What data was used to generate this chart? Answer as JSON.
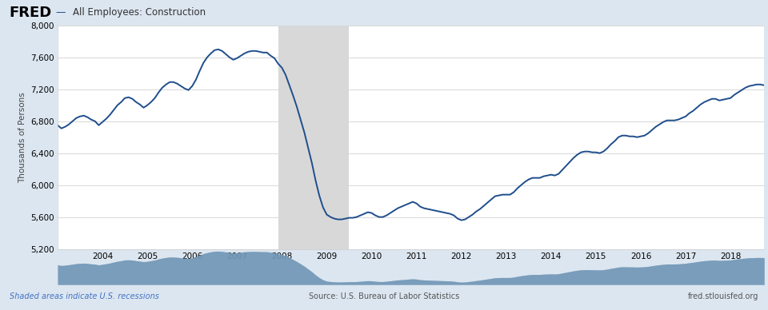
{
  "title": "All Employees: Construction",
  "ylabel": "Thousands of Persons",
  "recession_start": 2007.917,
  "recession_end": 2009.5,
  "line_color": "#1f4e8c",
  "recession_color": "#d8d8d8",
  "bg_color": "#ffffff",
  "header_bg": "#dce6f0",
  "footer_text_left": "Shaded areas indicate U.S. recessions",
  "footer_text_mid": "Source: U.S. Bureau of Labor Statistics",
  "footer_text_right": "fred.stlouisfed.org",
  "footer_color": "#4472c4",
  "ylim": [
    5200,
    8000
  ],
  "yticks": [
    5200,
    5600,
    6000,
    6400,
    6800,
    7200,
    7600,
    8000
  ],
  "data": {
    "dates": [
      2003.0,
      2003.083,
      2003.167,
      2003.25,
      2003.333,
      2003.417,
      2003.5,
      2003.583,
      2003.667,
      2003.75,
      2003.833,
      2003.917,
      2004.0,
      2004.083,
      2004.167,
      2004.25,
      2004.333,
      2004.417,
      2004.5,
      2004.583,
      2004.667,
      2004.75,
      2004.833,
      2004.917,
      2005.0,
      2005.083,
      2005.167,
      2005.25,
      2005.333,
      2005.417,
      2005.5,
      2005.583,
      2005.667,
      2005.75,
      2005.833,
      2005.917,
      2006.0,
      2006.083,
      2006.167,
      2006.25,
      2006.333,
      2006.417,
      2006.5,
      2006.583,
      2006.667,
      2006.75,
      2006.833,
      2006.917,
      2007.0,
      2007.083,
      2007.167,
      2007.25,
      2007.333,
      2007.417,
      2007.5,
      2007.583,
      2007.667,
      2007.75,
      2007.833,
      2007.917,
      2008.0,
      2008.083,
      2008.167,
      2008.25,
      2008.333,
      2008.417,
      2008.5,
      2008.583,
      2008.667,
      2008.75,
      2008.833,
      2008.917,
      2009.0,
      2009.083,
      2009.167,
      2009.25,
      2009.333,
      2009.417,
      2009.5,
      2009.583,
      2009.667,
      2009.75,
      2009.833,
      2009.917,
      2010.0,
      2010.083,
      2010.167,
      2010.25,
      2010.333,
      2010.417,
      2010.5,
      2010.583,
      2010.667,
      2010.75,
      2010.833,
      2010.917,
      2011.0,
      2011.083,
      2011.167,
      2011.25,
      2011.333,
      2011.417,
      2011.5,
      2011.583,
      2011.667,
      2011.75,
      2011.833,
      2011.917,
      2012.0,
      2012.083,
      2012.167,
      2012.25,
      2012.333,
      2012.417,
      2012.5,
      2012.583,
      2012.667,
      2012.75,
      2012.833,
      2012.917,
      2013.0,
      2013.083,
      2013.167,
      2013.25,
      2013.333,
      2013.417,
      2013.5,
      2013.583,
      2013.667,
      2013.75,
      2013.833,
      2013.917,
      2014.0,
      2014.083,
      2014.167,
      2014.25,
      2014.333,
      2014.417,
      2014.5,
      2014.583,
      2014.667,
      2014.75,
      2014.833,
      2014.917,
      2015.0,
      2015.083,
      2015.167,
      2015.25,
      2015.333,
      2015.417,
      2015.5,
      2015.583,
      2015.667,
      2015.75,
      2015.833,
      2015.917,
      2016.0,
      2016.083,
      2016.167,
      2016.25,
      2016.333,
      2016.417,
      2016.5,
      2016.583,
      2016.667,
      2016.75,
      2016.833,
      2016.917,
      2017.0,
      2017.083,
      2017.167,
      2017.25,
      2017.333,
      2017.417,
      2017.5,
      2017.583,
      2017.667,
      2017.75,
      2017.833,
      2017.917,
      2018.0,
      2018.083,
      2018.167,
      2018.25,
      2018.333,
      2018.417,
      2018.5,
      2018.583,
      2018.667,
      2018.75
    ],
    "values": [
      6750,
      6710,
      6730,
      6760,
      6800,
      6840,
      6860,
      6870,
      6850,
      6820,
      6800,
      6750,
      6790,
      6830,
      6880,
      6940,
      7000,
      7040,
      7090,
      7100,
      7080,
      7040,
      7010,
      6970,
      7000,
      7040,
      7090,
      7160,
      7220,
      7260,
      7290,
      7290,
      7270,
      7240,
      7210,
      7190,
      7240,
      7320,
      7430,
      7530,
      7600,
      7650,
      7690,
      7700,
      7680,
      7640,
      7600,
      7570,
      7590,
      7620,
      7650,
      7670,
      7680,
      7680,
      7670,
      7660,
      7660,
      7620,
      7590,
      7520,
      7470,
      7380,
      7250,
      7120,
      6980,
      6820,
      6660,
      6470,
      6280,
      6060,
      5870,
      5720,
      5630,
      5600,
      5580,
      5570,
      5570,
      5580,
      5590,
      5590,
      5600,
      5620,
      5640,
      5660,
      5650,
      5620,
      5600,
      5600,
      5620,
      5650,
      5680,
      5710,
      5730,
      5750,
      5770,
      5790,
      5770,
      5730,
      5710,
      5700,
      5690,
      5680,
      5670,
      5660,
      5650,
      5640,
      5620,
      5580,
      5560,
      5570,
      5600,
      5630,
      5670,
      5700,
      5740,
      5780,
      5820,
      5860,
      5870,
      5880,
      5880,
      5880,
      5910,
      5960,
      6000,
      6040,
      6070,
      6090,
      6090,
      6090,
      6110,
      6120,
      6130,
      6120,
      6140,
      6190,
      6240,
      6290,
      6340,
      6380,
      6410,
      6420,
      6420,
      6410,
      6410,
      6400,
      6420,
      6460,
      6510,
      6550,
      6600,
      6620,
      6620,
      6610,
      6610,
      6600,
      6610,
      6620,
      6650,
      6690,
      6730,
      6760,
      6790,
      6810,
      6810,
      6810,
      6820,
      6840,
      6860,
      6900,
      6930,
      6970,
      7010,
      7040,
      7060,
      7080,
      7080,
      7060,
      7070,
      7080,
      7090,
      7130,
      7160,
      7190,
      7220,
      7240,
      7250,
      7260,
      7260,
      7250
    ]
  },
  "xtick_years": [
    2004,
    2005,
    2006,
    2007,
    2008,
    2009,
    2010,
    2011,
    2012,
    2013,
    2014,
    2015,
    2016,
    2017,
    2018
  ],
  "mini_nav_color": "#8faec8",
  "mini_nav_highlight": "#5a85aa"
}
